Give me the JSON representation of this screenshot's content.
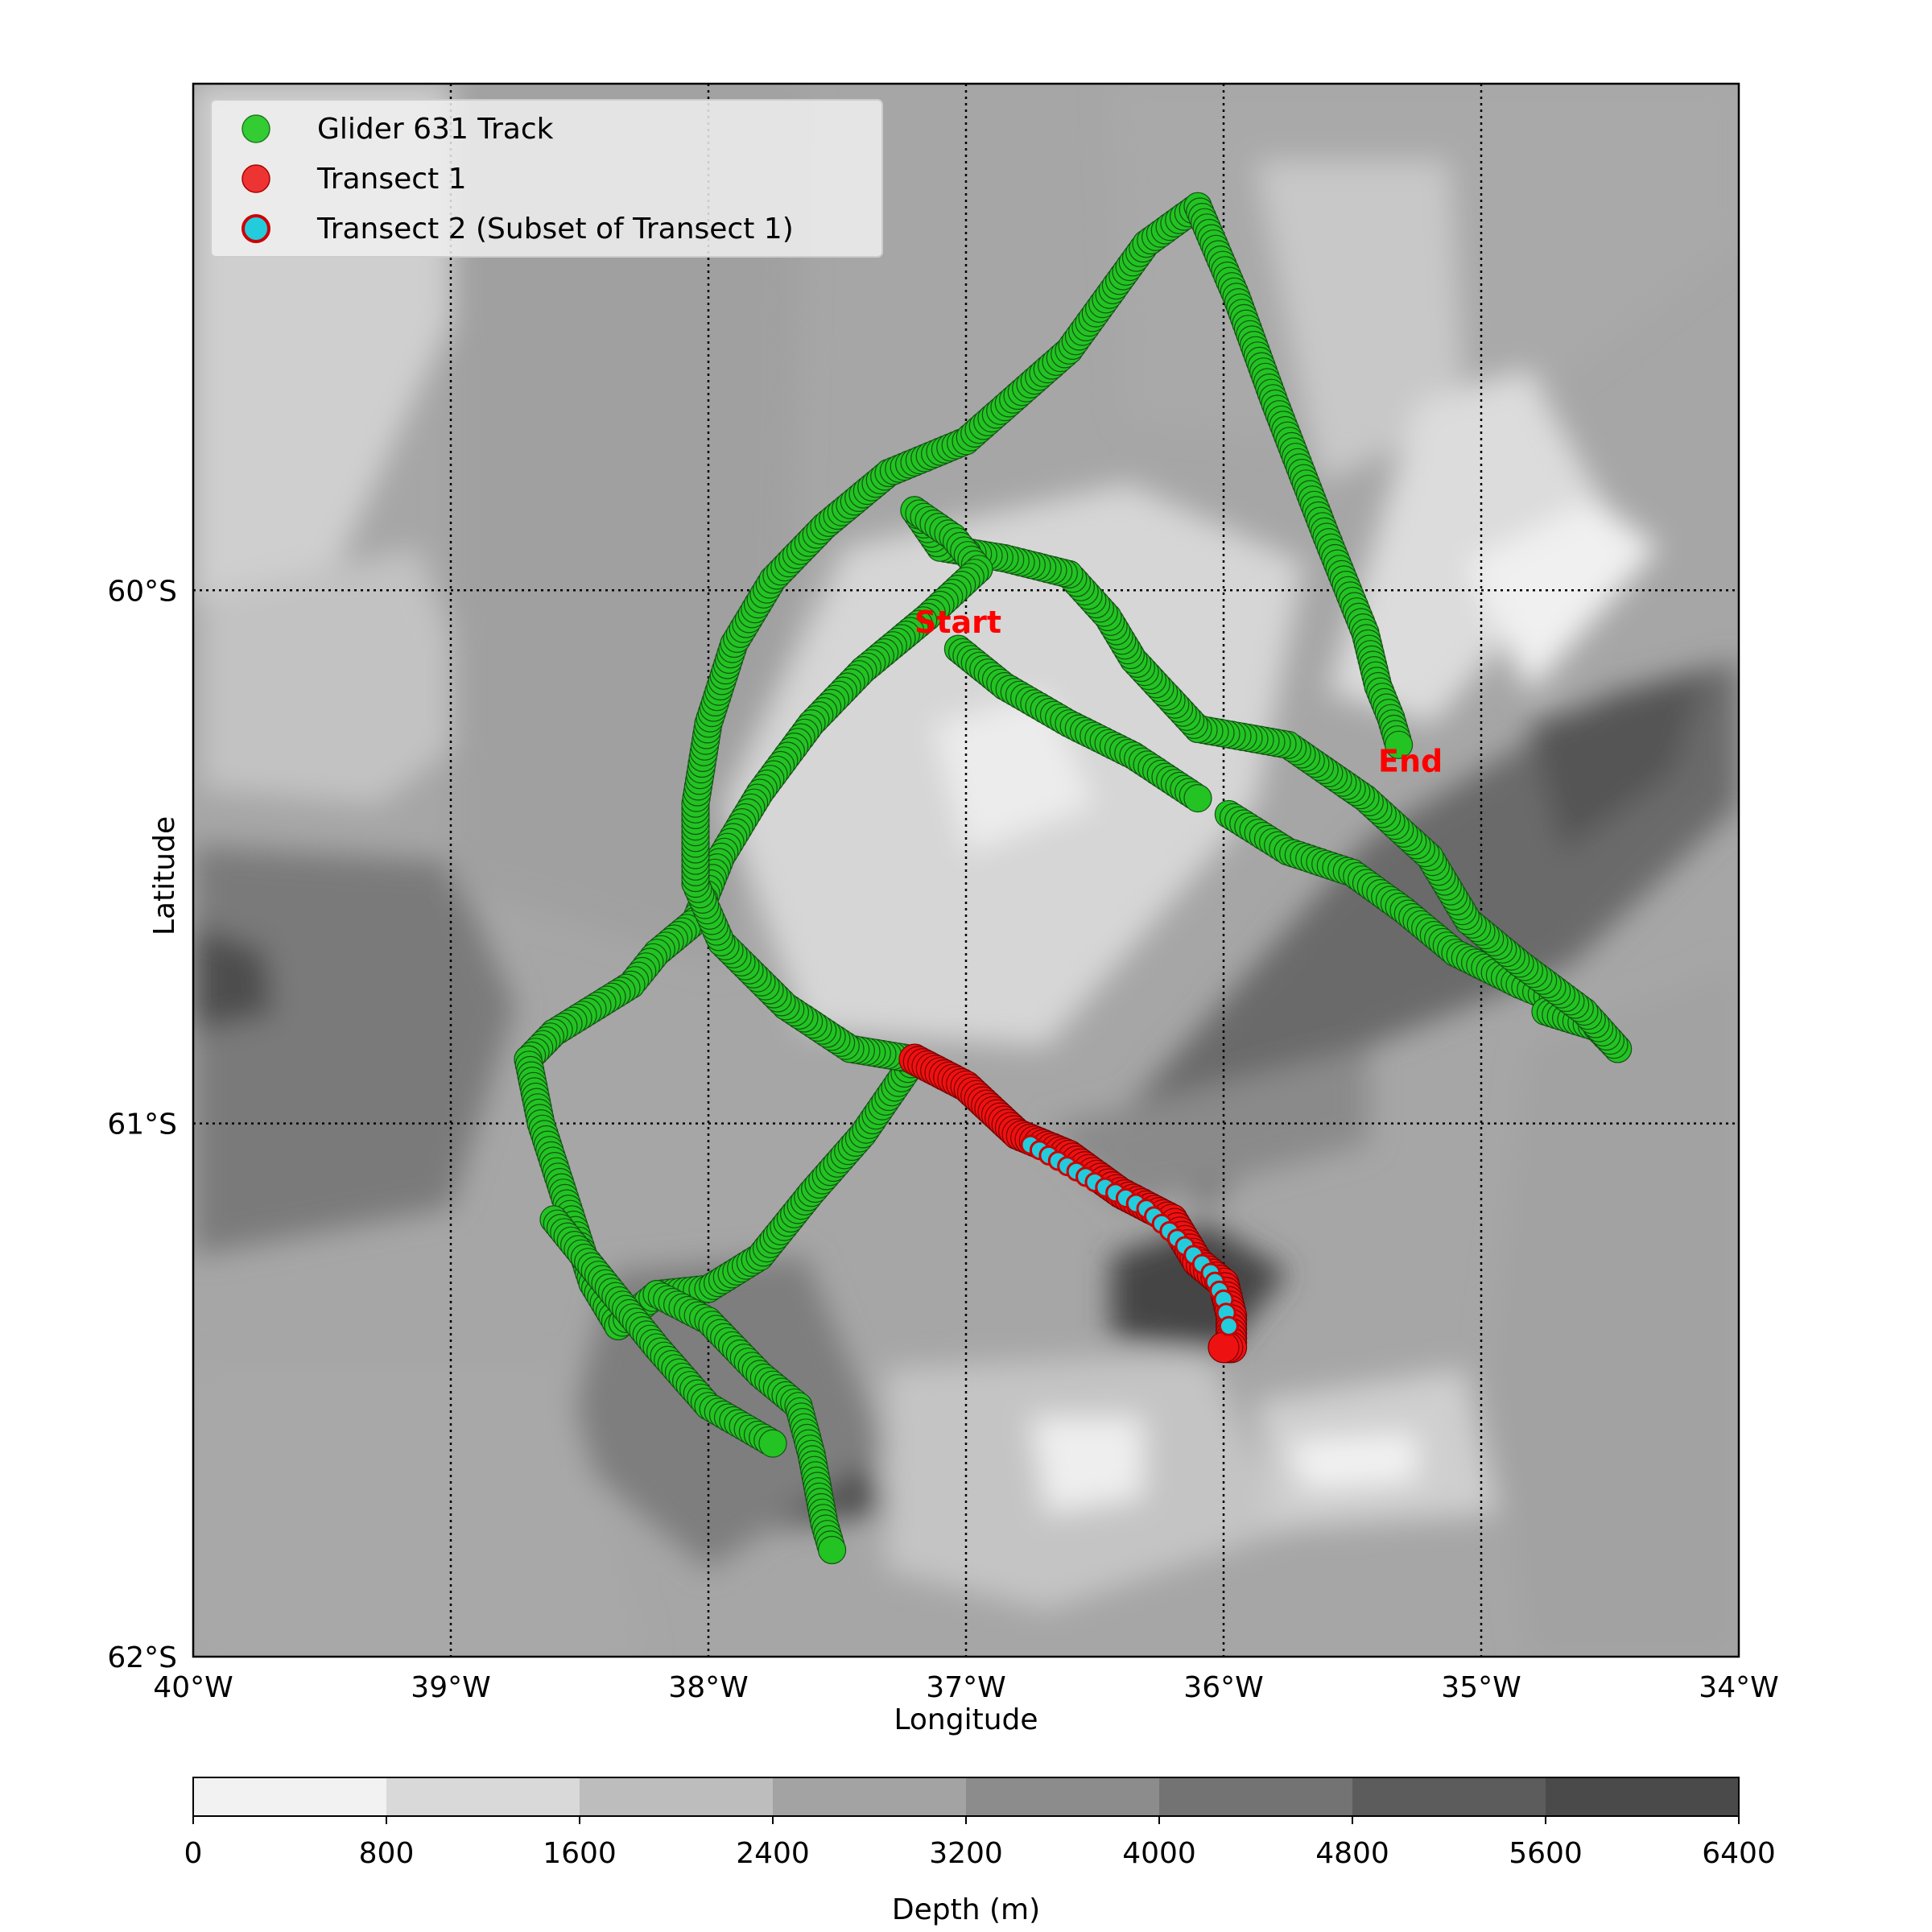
{
  "map": {
    "lon_range": [
      -40,
      -34
    ],
    "lat_range": [
      -62,
      -59.05
    ],
    "xlabel": "Longitude",
    "ylabel": "Latitude",
    "lon_ticks": [
      {
        "value": -40,
        "label": "40°W"
      },
      {
        "value": -39,
        "label": "39°W"
      },
      {
        "value": -38,
        "label": "38°W"
      },
      {
        "value": -37,
        "label": "37°W"
      },
      {
        "value": -36,
        "label": "36°W"
      },
      {
        "value": -35,
        "label": "35°W"
      },
      {
        "value": -34,
        "label": "34°W"
      }
    ],
    "lat_ticks": [
      {
        "value": -60,
        "label": "60°S"
      },
      {
        "value": -61,
        "label": "61°S"
      },
      {
        "value": -62,
        "label": "62°S"
      }
    ],
    "gridlines": "dotted",
    "background": "bathymetry-contours-grayscale"
  },
  "legend": {
    "position": "upper-left",
    "entries": [
      {
        "label": "Glider 631 Track",
        "fill": "#33cc33",
        "edge": "#1f7a1f"
      },
      {
        "label": "Transect 1",
        "fill": "#ee2222",
        "edge": "#aa0000"
      },
      {
        "label": "Transect 2 (Subset of Transect 1)",
        "fill": "#22ccdd",
        "edge": "#cc0000"
      }
    ]
  },
  "annotations": [
    {
      "text": "Start",
      "lon": -37.2,
      "lat": -60.08,
      "color": "#ff0000"
    },
    {
      "text": "End",
      "lon": -35.4,
      "lat": -60.34,
      "color": "#ff0000"
    }
  ],
  "colorbar": {
    "label": "Depth (m)",
    "ticks": [
      "0",
      "800",
      "1600",
      "2400",
      "3200",
      "4000",
      "4800",
      "5600",
      "6400"
    ],
    "colors": [
      "#f2f2f2",
      "#d9d9d9",
      "#bdbdbd",
      "#a3a3a3",
      "#8c8c8c",
      "#737373",
      "#5c5c5c",
      "#4a4a4a",
      "#3a3a3a"
    ]
  },
  "tracks": {
    "glider": [
      [
        [
          -37.03,
          -60.11
        ],
        [
          -36.85,
          -60.18
        ],
        [
          -36.6,
          -60.25
        ],
        [
          -36.35,
          -60.31
        ],
        [
          -36.1,
          -60.39
        ]
      ],
      [
        [
          -35.98,
          -60.42
        ],
        [
          -35.75,
          -60.49
        ],
        [
          -35.5,
          -60.53
        ],
        [
          -35.3,
          -60.6
        ],
        [
          -35.1,
          -60.68
        ],
        [
          -34.85,
          -60.74
        ],
        [
          -34.7,
          -60.77
        ]
      ],
      [
        [
          -34.75,
          -60.79
        ],
        [
          -34.55,
          -60.82
        ],
        [
          -34.47,
          -60.86
        ]
      ],
      [
        [
          -34.47,
          -60.86
        ],
        [
          -34.6,
          -60.79
        ],
        [
          -34.85,
          -60.7
        ],
        [
          -35.05,
          -60.62
        ],
        [
          -35.2,
          -60.5
        ],
        [
          -35.45,
          -60.39
        ],
        [
          -35.75,
          -60.29
        ],
        [
          -36.1,
          -60.26
        ],
        [
          -36.35,
          -60.13
        ],
        [
          -36.45,
          -60.05
        ],
        [
          -36.6,
          -59.97
        ],
        [
          -36.85,
          -59.94
        ],
        [
          -37.1,
          -59.92
        ],
        [
          -37.2,
          -59.85
        ]
      ],
      [
        [
          -37.2,
          -59.85
        ],
        [
          -37.05,
          -59.9
        ],
        [
          -36.95,
          -59.96
        ],
        [
          -37.15,
          -60.05
        ],
        [
          -37.4,
          -60.15
        ],
        [
          -37.6,
          -60.25
        ],
        [
          -37.8,
          -60.38
        ],
        [
          -37.95,
          -60.5
        ],
        [
          -38.05,
          -60.62
        ],
        [
          -38.2,
          -60.68
        ],
        [
          -38.3,
          -60.74
        ],
        [
          -38.6,
          -60.83
        ],
        [
          -38.7,
          -60.88
        ]
      ],
      [
        [
          -38.7,
          -60.88
        ],
        [
          -38.65,
          -61.0
        ],
        [
          -38.55,
          -61.15
        ],
        [
          -38.45,
          -61.3
        ],
        [
          -38.35,
          -61.38
        ]
      ],
      [
        [
          -38.35,
          -61.38
        ],
        [
          -38.2,
          -61.32
        ],
        [
          -38.0,
          -61.31
        ],
        [
          -37.8,
          -61.25
        ],
        [
          -37.6,
          -61.13
        ],
        [
          -37.4,
          -61.02
        ],
        [
          -37.2,
          -60.88
        ]
      ],
      [
        [
          -37.2,
          -60.88
        ],
        [
          -37.45,
          -60.86
        ],
        [
          -37.7,
          -60.78
        ],
        [
          -37.95,
          -60.66
        ],
        [
          -38.05,
          -60.55
        ],
        [
          -38.05,
          -60.4
        ],
        [
          -38.0,
          -60.25
        ],
        [
          -37.9,
          -60.1
        ],
        [
          -37.75,
          -59.98
        ],
        [
          -37.55,
          -59.88
        ],
        [
          -37.3,
          -59.78
        ],
        [
          -37.0,
          -59.72
        ],
        [
          -36.6,
          -59.55
        ],
        [
          -36.3,
          -59.35
        ],
        [
          -36.1,
          -59.28
        ]
      ],
      [
        [
          -36.1,
          -59.28
        ],
        [
          -35.95,
          -59.45
        ],
        [
          -35.8,
          -59.65
        ],
        [
          -35.6,
          -59.9
        ],
        [
          -35.45,
          -60.08
        ],
        [
          -35.4,
          -60.18
        ],
        [
          -35.35,
          -60.24
        ],
        [
          -35.32,
          -60.29
        ]
      ],
      [
        [
          -38.6,
          -61.18
        ],
        [
          -38.4,
          -61.3
        ],
        [
          -38.2,
          -61.42
        ],
        [
          -38.0,
          -61.53
        ],
        [
          -37.75,
          -61.6
        ]
      ],
      [
        [
          -38.2,
          -61.32
        ],
        [
          -38.0,
          -61.37
        ],
        [
          -37.8,
          -61.47
        ],
        [
          -37.65,
          -61.53
        ],
        [
          -37.6,
          -61.62
        ],
        [
          -37.55,
          -61.75
        ],
        [
          -37.52,
          -61.8
        ]
      ]
    ],
    "transect1": [
      [
        -37.2,
        -60.88
      ],
      [
        -37.0,
        -60.93
      ],
      [
        -36.8,
        -61.02
      ],
      [
        -36.6,
        -61.06
      ],
      [
        -36.4,
        -61.13
      ],
      [
        -36.2,
        -61.18
      ],
      [
        -36.1,
        -61.26
      ],
      [
        -36.0,
        -61.3
      ],
      [
        -35.97,
        -61.36
      ],
      [
        -35.97,
        -61.42
      ],
      [
        -36.0,
        -61.42
      ]
    ],
    "transect2": [
      [
        -36.75,
        -61.04
      ],
      [
        -36.5,
        -61.11
      ],
      [
        -36.3,
        -61.16
      ],
      [
        -36.15,
        -61.23
      ],
      [
        -36.05,
        -61.28
      ],
      [
        -36.0,
        -61.33
      ],
      [
        -35.98,
        -61.38
      ]
    ]
  }
}
